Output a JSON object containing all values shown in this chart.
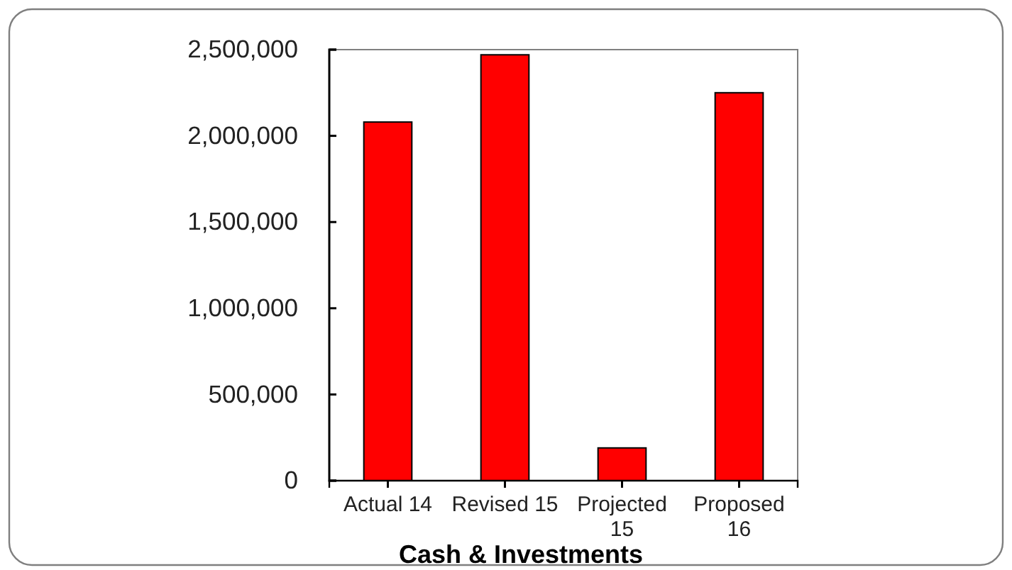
{
  "chart_data": {
    "type": "bar",
    "xlabel": "Cash & Investments",
    "categories": [
      "Actual 14",
      "Revised 15",
      "Projected 15",
      "Proposed 16"
    ],
    "values": [
      2080000,
      2470000,
      190000,
      2250000
    ],
    "color": "#ff0000",
    "ylim": [
      0,
      2500000
    ],
    "yticks": [
      {
        "value": 0,
        "label": "0"
      },
      {
        "value": 500000,
        "label": "500,000"
      },
      {
        "value": 1000000,
        "label": "1,000,000"
      },
      {
        "value": 1500000,
        "label": "1,500,000"
      },
      {
        "value": 2000000,
        "label": "2,000,000"
      },
      {
        "value": 2500000,
        "label": "2,500,000"
      }
    ]
  }
}
